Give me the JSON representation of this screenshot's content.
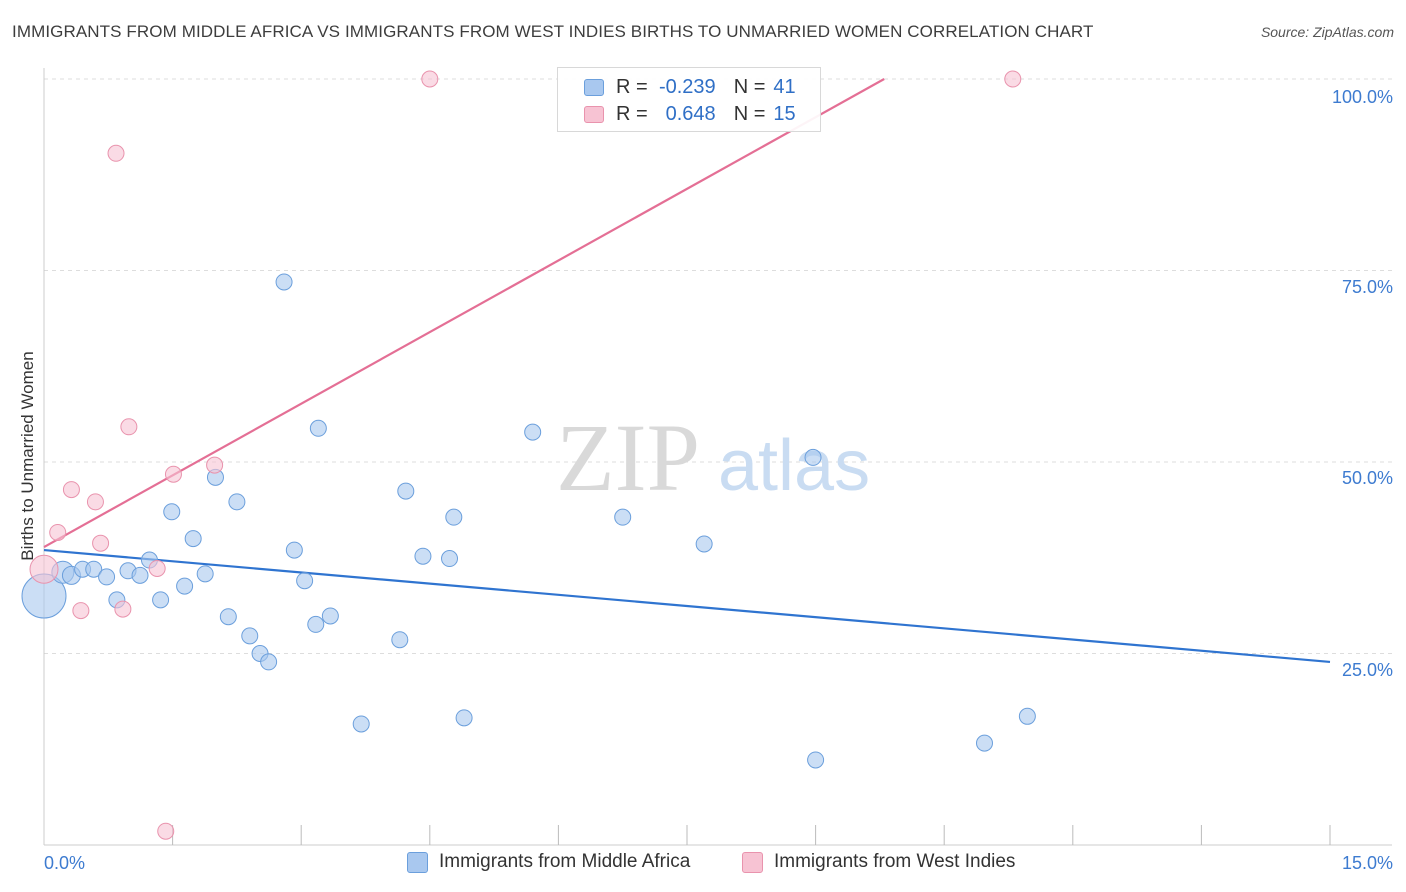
{
  "header": {
    "title": "IMMIGRANTS FROM MIDDLE AFRICA VS IMMIGRANTS FROM WEST INDIES BIRTHS TO UNMARRIED WOMEN CORRELATION CHART",
    "source": "Source: ZipAtlas.com"
  },
  "watermark": {
    "zip": "ZIP",
    "atlas": "atlas"
  },
  "legend": {
    "rows": [
      {
        "r_label": "R =",
        "r_value": "-0.239",
        "n_label": "N =",
        "n_value": "41"
      },
      {
        "r_label": "R =",
        "r_value": "0.648",
        "n_label": "N =",
        "n_value": "15"
      }
    ]
  },
  "bottom_legend": {
    "series_a": "Immigrants from Middle Africa",
    "series_b": "Immigrants from West Indies"
  },
  "colors": {
    "blue_fill": "#a9c8ef",
    "blue_stroke": "#6b9fdc",
    "blue_line": "#2f74d0",
    "pink_fill": "#f7c3d3",
    "pink_stroke": "#e993ad",
    "pink_line": "#e46f95",
    "grid": "#dddddd",
    "tick_text": "#3d7bd0"
  },
  "chart_data": {
    "type": "scatter",
    "title": "IMMIGRANTS FROM MIDDLE AFRICA VS IMMIGRANTS FROM WEST INDIES BIRTHS TO UNMARRIED WOMEN CORRELATION CHART",
    "xlabel": "",
    "ylabel": "Births to Unmarried Women",
    "xlim": [
      0,
      15
    ],
    "ylim": [
      0,
      100
    ],
    "x_tick_labels": {
      "min": "0.0%",
      "max": "15.0%"
    },
    "y_ticks": [
      {
        "value": 25,
        "label": "25.0%"
      },
      {
        "value": 50,
        "label": "50.0%"
      },
      {
        "value": 75,
        "label": "75.0%"
      },
      {
        "value": 100,
        "label": "100.0%"
      }
    ],
    "series": [
      {
        "name": "Immigrants from Middle Africa",
        "color": "blue",
        "R": -0.239,
        "N": 41,
        "trend": {
          "x0": 0,
          "y0": 38.5,
          "x1": 15,
          "y1": 23.9
        },
        "points": [
          {
            "x": 0.0,
            "y": 32.5,
            "s": 22
          },
          {
            "x": 0.22,
            "y": 35.6,
            "s": 11
          },
          {
            "x": 0.32,
            "y": 35.2,
            "s": 9
          },
          {
            "x": 0.45,
            "y": 36.0,
            "s": 8
          },
          {
            "x": 0.58,
            "y": 36.0,
            "s": 8
          },
          {
            "x": 0.73,
            "y": 35.0,
            "s": 8
          },
          {
            "x": 0.85,
            "y": 32.0,
            "s": 8
          },
          {
            "x": 0.98,
            "y": 35.8,
            "s": 8
          },
          {
            "x": 1.12,
            "y": 35.2,
            "s": 8
          },
          {
            "x": 1.23,
            "y": 37.2,
            "s": 8
          },
          {
            "x": 1.36,
            "y": 32.0,
            "s": 8
          },
          {
            "x": 1.49,
            "y": 43.5,
            "s": 8
          },
          {
            "x": 1.64,
            "y": 33.8,
            "s": 8
          },
          {
            "x": 1.74,
            "y": 40.0,
            "s": 8
          },
          {
            "x": 1.88,
            "y": 35.4,
            "s": 8
          },
          {
            "x": 2.0,
            "y": 48.0,
            "s": 8
          },
          {
            "x": 2.15,
            "y": 29.8,
            "s": 8
          },
          {
            "x": 2.25,
            "y": 44.8,
            "s": 8
          },
          {
            "x": 2.4,
            "y": 27.3,
            "s": 8
          },
          {
            "x": 2.52,
            "y": 25.0,
            "s": 8
          },
          {
            "x": 2.62,
            "y": 23.9,
            "s": 8
          },
          {
            "x": 2.8,
            "y": 73.5,
            "s": 8
          },
          {
            "x": 2.92,
            "y": 38.5,
            "s": 8
          },
          {
            "x": 3.04,
            "y": 34.5,
            "s": 8
          },
          {
            "x": 3.17,
            "y": 28.8,
            "s": 8
          },
          {
            "x": 3.2,
            "y": 54.4,
            "s": 8
          },
          {
            "x": 3.34,
            "y": 29.9,
            "s": 8
          },
          {
            "x": 3.7,
            "y": 15.8,
            "s": 8
          },
          {
            "x": 4.15,
            "y": 26.8,
            "s": 8
          },
          {
            "x": 4.22,
            "y": 46.2,
            "s": 8
          },
          {
            "x": 4.42,
            "y": 37.7,
            "s": 8
          },
          {
            "x": 4.73,
            "y": 37.4,
            "s": 8
          },
          {
            "x": 4.78,
            "y": 42.8,
            "s": 8
          },
          {
            "x": 4.9,
            "y": 16.6,
            "s": 8
          },
          {
            "x": 5.7,
            "y": 53.9,
            "s": 8
          },
          {
            "x": 6.75,
            "y": 42.8,
            "s": 8
          },
          {
            "x": 7.7,
            "y": 39.3,
            "s": 8
          },
          {
            "x": 8.97,
            "y": 50.6,
            "s": 8
          },
          {
            "x": 9.0,
            "y": 11.1,
            "s": 8
          },
          {
            "x": 10.97,
            "y": 13.3,
            "s": 8
          },
          {
            "x": 11.47,
            "y": 16.8,
            "s": 8
          }
        ]
      },
      {
        "name": "Immigrants from West Indies",
        "color": "pink",
        "R": 0.648,
        "N": 15,
        "trend": {
          "x0": 0,
          "y0": 38.9,
          "x1": 9.8,
          "y1": 100
        },
        "points": [
          {
            "x": 0.0,
            "y": 36.0,
            "s": 14
          },
          {
            "x": 0.16,
            "y": 40.8,
            "s": 8
          },
          {
            "x": 0.32,
            "y": 46.4,
            "s": 8
          },
          {
            "x": 0.43,
            "y": 30.6,
            "s": 8
          },
          {
            "x": 0.6,
            "y": 44.8,
            "s": 8
          },
          {
            "x": 0.66,
            "y": 39.4,
            "s": 8
          },
          {
            "x": 0.84,
            "y": 90.3,
            "s": 8
          },
          {
            "x": 0.92,
            "y": 30.8,
            "s": 8
          },
          {
            "x": 0.99,
            "y": 54.6,
            "s": 8
          },
          {
            "x": 1.32,
            "y": 36.1,
            "s": 8
          },
          {
            "x": 1.42,
            "y": 1.8,
            "s": 8
          },
          {
            "x": 1.51,
            "y": 48.4,
            "s": 8
          },
          {
            "x": 1.99,
            "y": 49.6,
            "s": 8
          },
          {
            "x": 4.5,
            "y": 100.0,
            "s": 8
          },
          {
            "x": 11.3,
            "y": 100.0,
            "s": 8
          }
        ]
      }
    ]
  }
}
